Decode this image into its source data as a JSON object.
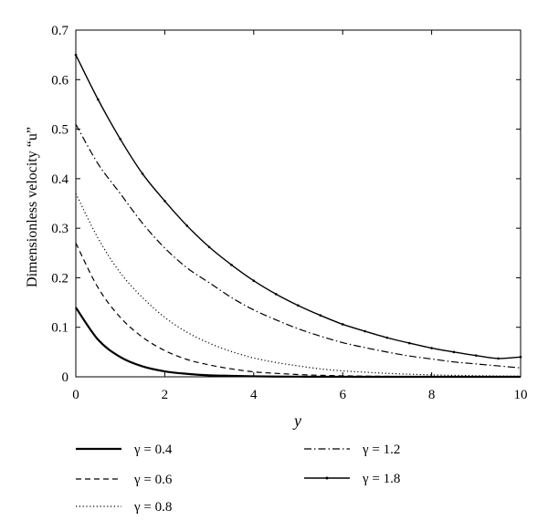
{
  "chart_data": {
    "type": "line",
    "xlabel": "y",
    "ylabel": "Dimensionless velocity “u”",
    "xlim": [
      0,
      10
    ],
    "ylim": [
      0,
      0.7
    ],
    "xticks": [
      "0",
      "2",
      "4",
      "6",
      "8",
      "10"
    ],
    "yticks": [
      "0",
      "0.1",
      "0.2",
      "0.3",
      "0.4",
      "0.5",
      "0.6",
      "0.7"
    ],
    "grid": false,
    "legend_position": "bottom",
    "x": [
      0,
      0.5,
      1,
      1.5,
      2,
      2.5,
      3,
      3.5,
      4,
      4.5,
      5,
      5.5,
      6,
      6.5,
      7,
      7.5,
      8,
      8.5,
      9,
      9.5,
      10
    ],
    "series": [
      {
        "name": "γ = 0.4",
        "style": "solid-thick",
        "color": "#000000",
        "values": [
          0.14,
          0.075,
          0.04,
          0.021,
          0.011,
          0.006,
          0.003,
          0.002,
          0.001,
          0.0005,
          0.0003,
          0.0001,
          0.0001,
          0,
          0,
          0,
          0,
          0,
          0,
          0,
          0
        ]
      },
      {
        "name": "γ = 0.6",
        "style": "dashed",
        "color": "#000000",
        "values": [
          0.27,
          0.18,
          0.12,
          0.08,
          0.053,
          0.035,
          0.024,
          0.016,
          0.01,
          0.007,
          0.0046,
          0.003,
          0.002,
          0.0014,
          0.0009,
          0.0006,
          0.0004,
          0.0003,
          0.0002,
          0.0001,
          0.0001
        ]
      },
      {
        "name": "γ = 0.8",
        "style": "dotted",
        "color": "#000000",
        "values": [
          0.37,
          0.28,
          0.21,
          0.16,
          0.12,
          0.09,
          0.068,
          0.051,
          0.038,
          0.029,
          0.022,
          0.016,
          0.012,
          0.0093,
          0.007,
          0.0052,
          0.0039,
          0.0029,
          0.0022,
          0.0017,
          0.0013
        ]
      },
      {
        "name": "γ = 1.2",
        "style": "dash-dot",
        "color": "#000000",
        "values": [
          0.51,
          0.43,
          0.37,
          0.31,
          0.26,
          0.22,
          0.19,
          0.16,
          0.135,
          0.115,
          0.097,
          0.082,
          0.069,
          0.059,
          0.05,
          0.042,
          0.036,
          0.03,
          0.026,
          0.022,
          0.018
        ]
      },
      {
        "name": "γ = 1.8",
        "style": "solid-dots",
        "color": "#000000",
        "values": [
          0.65,
          0.56,
          0.48,
          0.41,
          0.355,
          0.305,
          0.262,
          0.226,
          0.194,
          0.167,
          0.144,
          0.124,
          0.106,
          0.092,
          0.079,
          0.068,
          0.058,
          0.05,
          0.043,
          0.037,
          0.04
        ]
      }
    ]
  }
}
